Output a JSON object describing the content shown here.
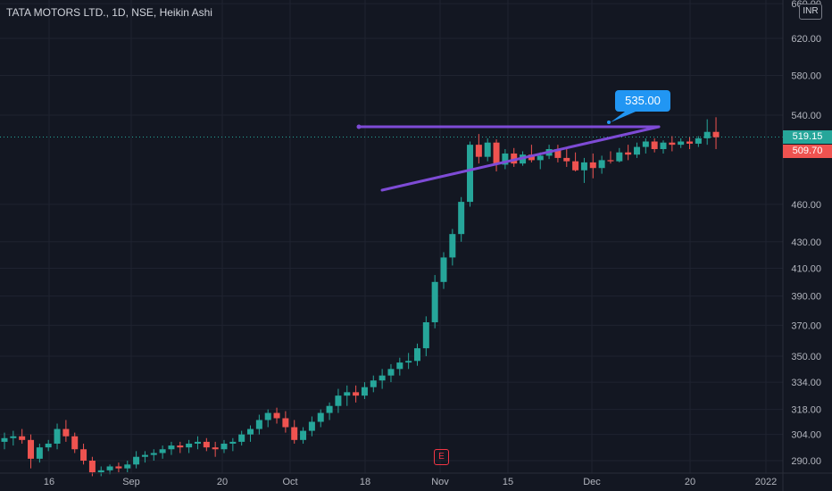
{
  "header": {
    "title": "TATA MOTORS LTD., 1D, NSE, Heikin Ashi",
    "currency_label": "INR"
  },
  "price_tags": {
    "last": {
      "label": "519.15",
      "color": "#26a69a"
    },
    "prev": {
      "label": "509.70",
      "color": "#ef5350"
    }
  },
  "annotation": {
    "label": "535.00",
    "color": "#2196f3"
  },
  "earnings_marker": {
    "label": "E"
  },
  "colors": {
    "background": "#131722",
    "up": "#26a69a",
    "down": "#ef5350",
    "pattern": "#7e4bd6",
    "axis_text": "#b2b5be"
  },
  "chart_data": {
    "type": "candlestick",
    "title": "TATA MOTORS LTD., 1D, NSE, Heikin Ashi",
    "xlabel": "",
    "ylabel": "",
    "x_ticks": [
      "16",
      "Sep",
      "20",
      "Oct",
      "18",
      "Nov",
      "15",
      "Dec",
      "20",
      "2022"
    ],
    "y_ticks": [
      290,
      304,
      318,
      334,
      350,
      370,
      390,
      410,
      430,
      460,
      540,
      580,
      620,
      660
    ],
    "y_scale": "log",
    "ylim": [
      283,
      660
    ],
    "current_price": 519.15,
    "ohlc": [
      [
        300,
        305,
        296,
        302
      ],
      [
        302,
        306,
        298,
        303
      ],
      [
        303,
        307,
        299,
        301
      ],
      [
        301,
        304,
        286,
        291
      ],
      [
        291,
        299,
        289,
        297
      ],
      [
        297,
        301,
        295,
        299
      ],
      [
        299,
        310,
        296,
        307
      ],
      [
        307,
        312,
        300,
        303
      ],
      [
        303,
        305,
        294,
        296
      ],
      [
        296,
        299,
        288,
        290
      ],
      [
        290,
        292,
        282,
        284
      ],
      [
        284,
        287,
        282,
        285
      ],
      [
        285,
        288,
        283,
        287
      ],
      [
        287,
        289,
        284,
        286
      ],
      [
        286,
        290,
        284,
        288
      ],
      [
        288,
        295,
        286,
        292
      ],
      [
        292,
        295,
        289,
        293
      ],
      [
        293,
        296,
        290,
        294
      ],
      [
        294,
        298,
        291,
        296
      ],
      [
        296,
        300,
        293,
        298
      ],
      [
        298,
        300,
        294,
        297
      ],
      [
        297,
        301,
        294,
        299
      ],
      [
        299,
        303,
        296,
        300
      ],
      [
        300,
        302,
        295,
        297
      ],
      [
        297,
        300,
        292,
        296
      ],
      [
        296,
        301,
        294,
        299
      ],
      [
        299,
        302,
        295,
        300
      ],
      [
        300,
        306,
        298,
        304
      ],
      [
        304,
        309,
        300,
        307
      ],
      [
        307,
        315,
        304,
        312
      ],
      [
        312,
        318,
        308,
        316
      ],
      [
        316,
        319,
        310,
        313
      ],
      [
        313,
        317,
        305,
        308
      ],
      [
        308,
        312,
        299,
        301
      ],
      [
        301,
        308,
        299,
        306
      ],
      [
        306,
        314,
        303,
        311
      ],
      [
        311,
        318,
        308,
        316
      ],
      [
        316,
        322,
        312,
        320
      ],
      [
        320,
        330,
        316,
        326
      ],
      [
        326,
        332,
        320,
        328
      ],
      [
        328,
        332,
        322,
        326
      ],
      [
        326,
        334,
        324,
        331
      ],
      [
        331,
        338,
        328,
        335
      ],
      [
        335,
        342,
        330,
        338
      ],
      [
        338,
        345,
        334,
        342
      ],
      [
        342,
        349,
        338,
        346
      ],
      [
        346,
        352,
        342,
        347
      ],
      [
        347,
        358,
        344,
        355
      ],
      [
        355,
        376,
        350,
        372
      ],
      [
        372,
        405,
        368,
        400
      ],
      [
        400,
        422,
        395,
        418
      ],
      [
        418,
        440,
        412,
        436
      ],
      [
        436,
        466,
        430,
        462
      ],
      [
        462,
        515,
        458,
        512
      ],
      [
        512,
        522,
        495,
        501
      ],
      [
        501,
        518,
        497,
        514
      ],
      [
        514,
        517,
        488,
        494
      ],
      [
        494,
        508,
        490,
        504
      ],
      [
        504,
        509,
        492,
        495
      ],
      [
        495,
        506,
        493,
        503
      ],
      [
        503,
        512,
        496,
        498
      ],
      [
        498,
        505,
        490,
        502
      ],
      [
        502,
        512,
        499,
        508
      ],
      [
        508,
        512,
        496,
        500
      ],
      [
        500,
        508,
        492,
        497
      ],
      [
        497,
        505,
        488,
        489
      ],
      [
        489,
        500,
        478,
        496
      ],
      [
        496,
        504,
        482,
        491
      ],
      [
        491,
        502,
        486,
        498
      ],
      [
        498,
        506,
        495,
        497
      ],
      [
        497,
        509,
        496,
        505
      ],
      [
        505,
        512,
        498,
        503
      ],
      [
        503,
        514,
        500,
        510
      ],
      [
        510,
        518,
        504,
        515
      ],
      [
        515,
        518,
        505,
        508
      ],
      [
        508,
        516,
        504,
        514
      ],
      [
        514,
        520,
        506,
        512
      ],
      [
        512,
        518,
        509,
        515
      ],
      [
        515,
        519,
        508,
        513
      ],
      [
        513,
        520,
        510,
        518
      ],
      [
        518,
        536,
        512,
        524
      ],
      [
        524,
        538,
        508,
        519
      ]
    ]
  }
}
